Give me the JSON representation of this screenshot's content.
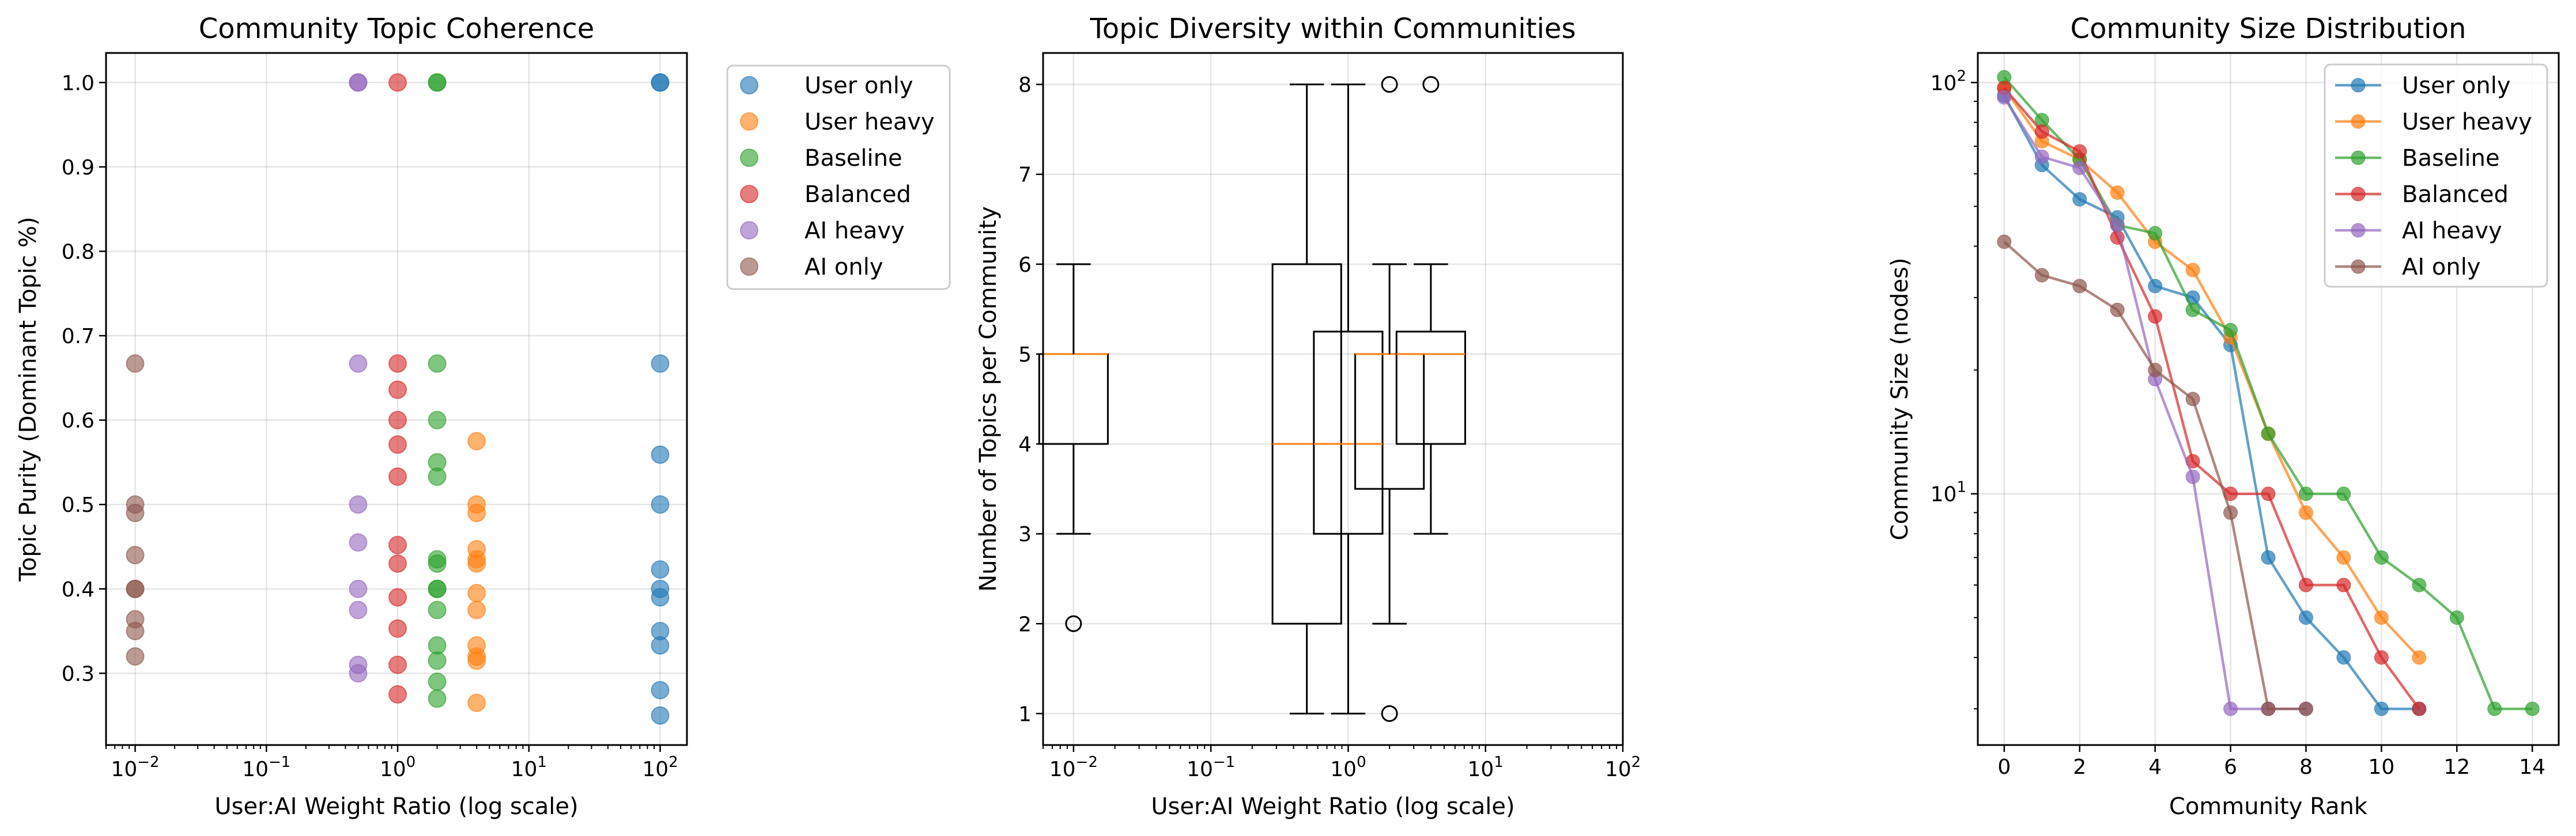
{
  "charts": {
    "scatter": {
      "title": "Community Topic Coherence",
      "xlabel": "User:AI Weight Ratio (log scale)",
      "ylabel": "Topic Purity (Dominant Topic %)",
      "xticks": [
        "10",
        "10",
        "10",
        "10",
        "10"
      ],
      "xtick_exps": [
        "−2",
        "−1",
        "0",
        "1",
        "2"
      ],
      "yticks": [
        "0.3",
        "0.4",
        "0.5",
        "0.6",
        "0.7",
        "0.8",
        "0.9",
        "1.0"
      ]
    },
    "box": {
      "title": "Topic Diversity within Communities",
      "xlabel": "User:AI Weight Ratio (log scale)",
      "ylabel": "Number of Topics per Community",
      "xticks": [
        "10",
        "10",
        "10",
        "10",
        "10"
      ],
      "xtick_exps": [
        "−2",
        "−1",
        "0",
        "1",
        "2"
      ],
      "yticks": [
        "1",
        "2",
        "3",
        "4",
        "5",
        "6",
        "7",
        "8"
      ]
    },
    "size": {
      "title": "Community Size Distribution",
      "xlabel": "Community Rank",
      "ylabel": "Community Size (nodes)",
      "xticks": [
        "0",
        "2",
        "4",
        "6",
        "8",
        "10",
        "12",
        "14"
      ],
      "yticks": [
        "10",
        "10"
      ],
      "ytick_exps": [
        "1",
        "2"
      ]
    }
  },
  "legend": [
    "User only",
    "User heavy",
    "Baseline",
    "Balanced",
    "AI heavy",
    "AI only"
  ],
  "colors": [
    "#1f77b4",
    "#ff7f0e",
    "#2ca02c",
    "#d62728",
    "#9467bd",
    "#8c564b"
  ],
  "chart_data": [
    {
      "type": "scatter",
      "title": "Community Topic Coherence",
      "xlabel": "User:AI Weight Ratio (log scale)",
      "ylabel": "Topic Purity (Dominant Topic %)",
      "xscale": "log",
      "xlim": [
        0.006,
        160
      ],
      "ylim": [
        0.215,
        1.035
      ],
      "grid": true,
      "legend_position": "outside right, top",
      "series": [
        {
          "name": "User only",
          "x": 100,
          "y": [
            1.0,
            1.0,
            0.667,
            0.559,
            0.5,
            0.423,
            0.4,
            0.39,
            0.35,
            0.333,
            0.28,
            0.25
          ]
        },
        {
          "name": "User heavy",
          "x": 4,
          "y": [
            0.575,
            0.5,
            0.49,
            0.447,
            0.435,
            0.43,
            0.395,
            0.375,
            0.333,
            0.32,
            0.315,
            0.265
          ]
        },
        {
          "name": "Baseline",
          "x": 2,
          "y": [
            1.0,
            1.0,
            0.667,
            0.6,
            0.55,
            0.533,
            0.435,
            0.43,
            0.4,
            0.4,
            0.375,
            0.333,
            0.315,
            0.29,
            0.27
          ]
        },
        {
          "name": "Balanced",
          "x": 1,
          "y": [
            1.0,
            0.667,
            0.636,
            0.6,
            0.571,
            0.533,
            0.452,
            0.43,
            0.39,
            0.353,
            0.31,
            0.275
          ]
        },
        {
          "name": "AI heavy",
          "x": 0.5,
          "y": [
            1.0,
            1.0,
            0.667,
            0.5,
            0.455,
            0.4,
            0.375,
            0.31,
            0.3
          ]
        },
        {
          "name": "AI only",
          "x": 0.01,
          "y": [
            0.667,
            0.5,
            0.49,
            0.44,
            0.4,
            0.4,
            0.364,
            0.35,
            0.32
          ]
        }
      ]
    },
    {
      "type": "box",
      "title": "Topic Diversity within Communities",
      "xlabel": "User:AI Weight Ratio (log scale)",
      "ylabel": "Number of Topics per Community",
      "xscale": "log",
      "xlim": [
        0.006,
        100
      ],
      "ylim": [
        0.65,
        8.35
      ],
      "grid": true,
      "boxes": [
        {
          "position": 0.01,
          "whisker_low": 3,
          "q1": 4,
          "median": 5,
          "q3": 5,
          "whisker_high": 6,
          "fliers": [
            2
          ]
        },
        {
          "position": 0.5,
          "whisker_low": 1,
          "q1": 2,
          "median": 4,
          "q3": 6,
          "whisker_high": 8,
          "fliers": []
        },
        {
          "position": 1,
          "whisker_low": 1,
          "q1": 3,
          "median": 4,
          "q3": 5.25,
          "whisker_high": 8,
          "fliers": []
        },
        {
          "position": 2,
          "whisker_low": 2,
          "q1": 3.5,
          "median": 5,
          "q3": 5,
          "whisker_high": 6,
          "fliers": [
            8,
            1
          ]
        },
        {
          "position": 4,
          "whisker_low": 3,
          "q1": 4,
          "median": 5,
          "q3": 5.25,
          "whisker_high": 6,
          "fliers": [
            8
          ]
        }
      ]
    },
    {
      "type": "line",
      "title": "Community Size Distribution",
      "xlabel": "Community Rank",
      "ylabel": "Community Size (nodes)",
      "yscale": "log",
      "xlim": [
        -0.7,
        14.7
      ],
      "ylim": [
        2.45,
        118
      ],
      "grid": true,
      "legend_position": "top-right",
      "series": [
        {
          "name": "User only",
          "values": [
            93,
            63,
            52,
            47,
            32,
            30,
            23,
            7,
            5,
            4,
            3,
            3
          ]
        },
        {
          "name": "User heavy",
          "values": [
            97,
            72,
            65,
            54,
            41,
            35,
            24,
            14,
            9,
            7,
            5,
            4
          ]
        },
        {
          "name": "Baseline",
          "values": [
            103,
            81,
            65,
            45,
            43,
            28,
            25,
            14,
            10,
            10,
            7,
            6,
            5,
            3,
            3
          ]
        },
        {
          "name": "Balanced",
          "values": [
            97,
            76,
            68,
            42,
            27,
            12,
            10,
            10,
            6,
            6,
            4,
            3
          ]
        },
        {
          "name": "AI heavy",
          "values": [
            92,
            66,
            62,
            45,
            19,
            11,
            3,
            3,
            3
          ]
        },
        {
          "name": "AI only",
          "values": [
            41,
            34,
            32,
            28,
            20,
            17,
            9,
            3,
            3
          ]
        }
      ]
    }
  ]
}
